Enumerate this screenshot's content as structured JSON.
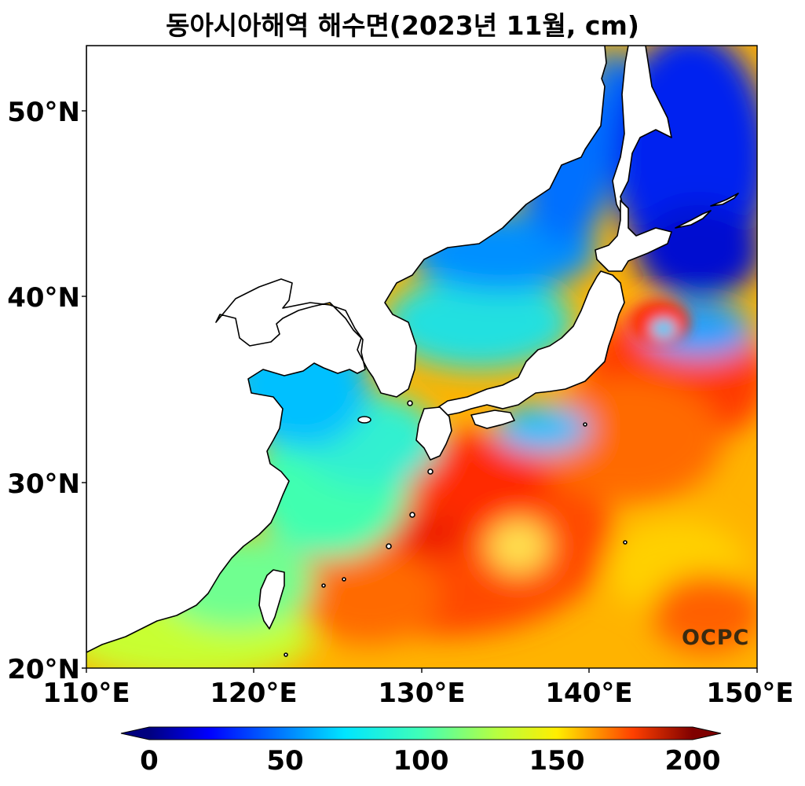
{
  "title": "동아시아해역 해수면(2023년 11월, cm)",
  "map": {
    "lon_range": [
      110,
      150
    ],
    "lat_range": [
      20,
      53.5
    ],
    "x_ticks": [
      "110°E",
      "120°E",
      "130°E",
      "140°E",
      "150°E"
    ],
    "y_ticks": [
      "20°N",
      "30°N",
      "40°N",
      "50°N"
    ],
    "colormap": "jet",
    "colors": {
      "land": "#ffffff",
      "coast": "#000000",
      "low": "#00007f",
      "mid": "#00ffc0",
      "high": "#7f0000"
    }
  },
  "colorbar": {
    "min": 0,
    "max": 200,
    "ticks": [
      "0",
      "50",
      "100",
      "150",
      "200"
    ],
    "extend": "both"
  },
  "logo": "OCPC"
}
